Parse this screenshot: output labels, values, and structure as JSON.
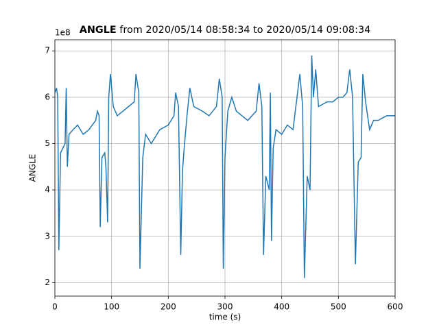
{
  "chart_data": {
    "type": "line",
    "title_bold": "ANGLE",
    "title": "from 2020/05/14 08:58:34 to 2020/05/14 09:08:34",
    "offset_text": "1e8",
    "x_label": "time (s)",
    "y_label": "ANGLE",
    "x": [
      0,
      3,
      5,
      7,
      10,
      14,
      18,
      20,
      22,
      25,
      32,
      40,
      50,
      60,
      72,
      75,
      78,
      80,
      83,
      88,
      90,
      93,
      95,
      98,
      103,
      110,
      120,
      130,
      140,
      143,
      148,
      150,
      155,
      160,
      170,
      185,
      200,
      210,
      213,
      218,
      222,
      225,
      228,
      233,
      238,
      245,
      260,
      272,
      285,
      290,
      295,
      297,
      300,
      305,
      312,
      320,
      330,
      340,
      355,
      360,
      365,
      368,
      372,
      378,
      380,
      382,
      385,
      390,
      400,
      410,
      420,
      428,
      432,
      437,
      440,
      445,
      450,
      453,
      456,
      460,
      465,
      480,
      490,
      500,
      508,
      515,
      520,
      525,
      530,
      535,
      540,
      543,
      548,
      555,
      562,
      570,
      585,
      600
    ],
    "series": [
      {
        "name": "ANGLE",
        "color": "#1f77b4",
        "values": [
          6.1,
          6.2,
          6.0,
          2.7,
          4.8,
          4.9,
          5.0,
          6.2,
          4.5,
          5.2,
          5.3,
          5.4,
          5.2,
          5.3,
          5.5,
          5.7,
          5.6,
          3.2,
          4.7,
          4.8,
          4.5,
          3.3,
          6.0,
          6.5,
          5.8,
          5.6,
          5.7,
          5.8,
          5.9,
          6.5,
          6.1,
          2.3,
          4.7,
          5.2,
          5.0,
          5.3,
          5.4,
          5.6,
          6.1,
          5.8,
          2.6,
          4.4,
          4.9,
          5.6,
          6.2,
          5.8,
          5.7,
          5.6,
          5.8,
          6.4,
          6.0,
          2.3,
          4.7,
          5.7,
          6.0,
          5.7,
          5.6,
          5.5,
          5.7,
          6.3,
          5.8,
          2.6,
          4.3,
          4.0,
          6.1,
          2.9,
          4.9,
          5.3,
          5.2,
          5.4,
          5.3,
          6.1,
          6.5,
          5.8,
          2.1,
          4.3,
          4.0,
          6.9,
          6.0,
          6.6,
          5.8,
          5.9,
          5.9,
          6.0,
          6.0,
          6.1,
          6.6,
          6.0,
          2.4,
          4.6,
          4.7,
          6.5,
          5.9,
          5.3,
          5.5,
          5.5,
          5.6,
          5.6
        ]
      }
    ],
    "xlim": [
      0,
      600
    ],
    "xticks": [
      0,
      100,
      200,
      300,
      400,
      500,
      600
    ],
    "ylim": [
      1.71,
      7.24
    ],
    "yticks": [
      2,
      3,
      4,
      5,
      6,
      7
    ],
    "grid": true
  }
}
